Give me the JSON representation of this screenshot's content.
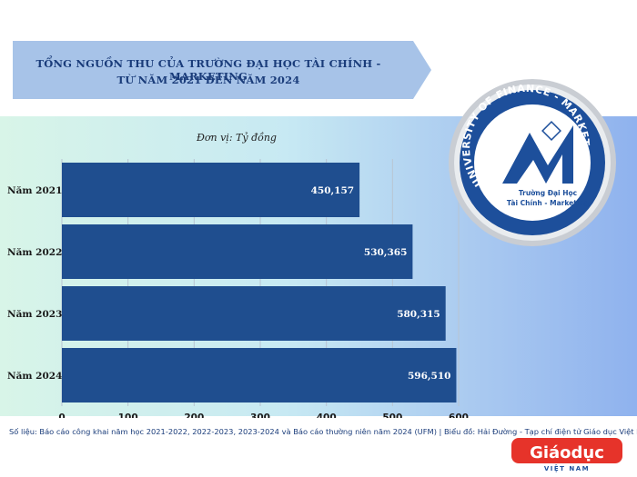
{
  "title": {
    "line1": "TỔNG NGUỒN THU CỦA TRƯỜNG ĐẠI HỌC TÀI CHÍNH - MARKETING",
    "line2": "TỪ NĂM 2021 ĐẾN NĂM 2024"
  },
  "unit": "Đơn vị: Tỷ đồng",
  "chart_data": {
    "type": "bar",
    "orientation": "horizontal",
    "categories": [
      "Năm 2021",
      "Năm 2022",
      "Năm 2023",
      "Năm 2024"
    ],
    "values": [
      450157,
      530365,
      580315,
      596510
    ],
    "value_labels": [
      "450,157",
      "530,365",
      "580,315",
      "596,510"
    ],
    "xlim": [
      0,
      600
    ],
    "value_scale": 1000,
    "x_ticks": [
      "0",
      "100",
      "200",
      "300",
      "400",
      "500",
      "600"
    ],
    "grid": true,
    "bar_color": "#1f4e8f"
  },
  "logo": {
    "arc_text": "UNIVERSITY OF FINANCE - MARKETING",
    "name_line1": "Trường Đại Học",
    "name_line2": "Tài Chính - Marketing"
  },
  "footer": "Số liệu: Báo cáo công khai năm học 2021-2022, 2022-2023, 2023-2024 và Báo cáo thường niên năm 2024 (UFM) | Biểu đồ: Hải Đường - Tạp chí điện tử Giáo dục Việt Nam",
  "brand": {
    "name": "Giáodục",
    "sub": "VIỆT NAM"
  },
  "colors": {
    "bar": "#1f4e8f",
    "title": "#1a3c7a",
    "banner": "#a7c3e8"
  }
}
